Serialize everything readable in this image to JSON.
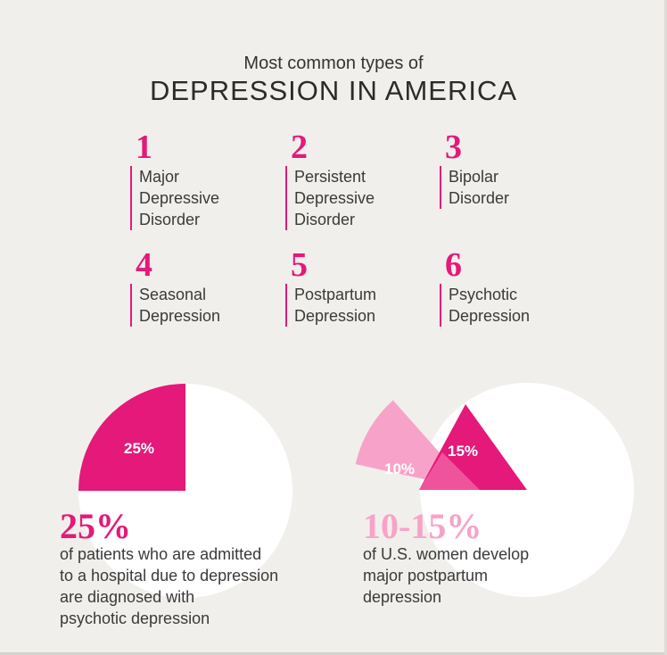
{
  "header": {
    "subtitle": "Most common types of",
    "title": "DEPRESSION IN AMERICA"
  },
  "types": [
    {
      "number": "1",
      "label": "Major\nDepressive\nDisorder"
    },
    {
      "number": "2",
      "label": "Persistent\nDepressive\nDisorder"
    },
    {
      "number": "3",
      "label": "Bipolar\nDisorder"
    },
    {
      "number": "4",
      "label": "Seasonal\nDepression"
    },
    {
      "number": "5",
      "label": "Postpartum\nDepression"
    },
    {
      "number": "6",
      "label": "Psychotic\nDepression"
    }
  ],
  "stats": [
    {
      "headline": "25%",
      "text": "of patients who are admitted\nto a hospital due to depression\nare diagnosed with\npsychotic depression"
    },
    {
      "headline": "10-15%",
      "text": "of U.S. women develop\nmajor postpartum\ndepression"
    }
  ],
  "colors": {
    "background": "#f1efeb",
    "accent": "#e4197a",
    "accent_light": "#f7a3c9",
    "accent_mid": "#f05aa0",
    "pie_base": "#ffffff"
  },
  "chart_data": [
    {
      "type": "pie",
      "slices": [
        {
          "label": "25%",
          "value": 25
        },
        {
          "label": "",
          "value": 75
        }
      ]
    },
    {
      "type": "pie",
      "slices": [
        {
          "label": "10%",
          "value": 10
        },
        {
          "label": "15%",
          "value": 15
        }
      ]
    }
  ]
}
